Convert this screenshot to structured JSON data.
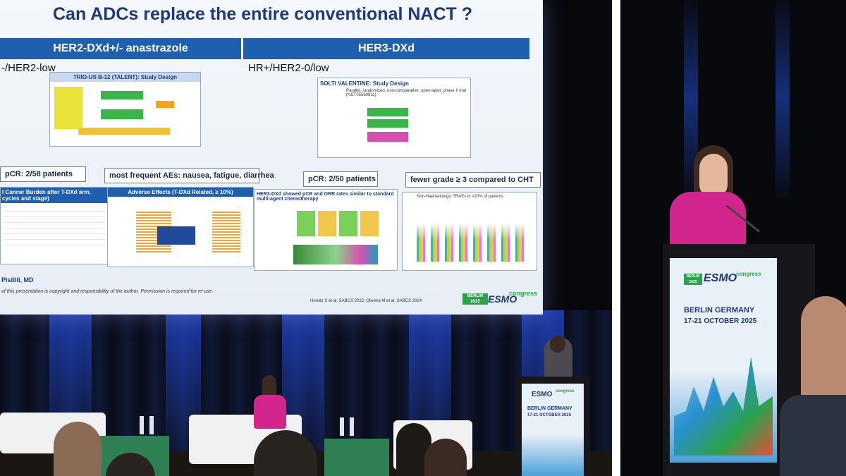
{
  "slide": {
    "title": "Can ADCs replace the entire conventional NACT ?",
    "left_header": "HER2-DXd+/- anastrazole",
    "right_header": "HER3-DXd",
    "left_subtitle": "-/HER2-low",
    "right_subtitle": "HR+/HER2-0/low",
    "talent_box_title": "TRIO-US B-12 (TALENT): Study Design",
    "valentine_box_title": "SOLTI VALENTINE: Study Design",
    "valentine_box_sub": "Parallel, randomized, non-comparative, open-label, phase II trial (NCT05569811)",
    "pcr_left": "pCR: 2/58 patients",
    "aes_left": "most frequent AEs: nausea, fatigue, diarrhea",
    "pcr_right": "pCR: 2/50 patients",
    "fewer_grade": "fewer grade ≥ 3 compared to CHT",
    "rcb_title": "l Cancer Burden after T-DXd arm, cycles and stage)",
    "ae_title": "Adverse Effects (T-DXd Related, ≥ 10%)",
    "her3_panel_title": "HER3-DXd showed pCR and ORR rates similar to standard multi-agent chemotherapy",
    "trae_title": "Non-Haematologic TRAEs in ≥20% of patients",
    "presenter": "Pistilli, MD",
    "copyright": "of this presentation is copyright and responsibility of the author. Permission is required for re-use.",
    "citation": "Hurvitz S et al, SABCS 2022; Oliveira M et al, SABCS 2024",
    "logo_esmo": "ESMO",
    "logo_congress": "congress",
    "logo_year": "BERLIN 2025"
  },
  "podium_left": {
    "esmo": "ESMO",
    "congress": "congress",
    "city": "BERLIN GERMANY",
    "dates": "17-21 OCTOBER 2025"
  },
  "podium_right": {
    "esmo": "ESMO",
    "congress": "congress",
    "year": "BERLIN 2025",
    "city": "BERLIN GERMANY",
    "dates": "17-21 OCTOBER 2025"
  },
  "colors": {
    "slide_blue": "#1f5fb0",
    "title_blue": "#1f3a78",
    "curtain_blue": "#1b3fa8",
    "speaker_pink": "#d2268e",
    "esmo_green": "#2aa34a"
  }
}
